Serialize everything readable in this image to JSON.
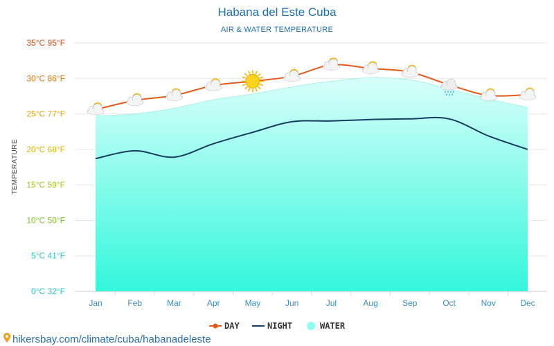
{
  "header": {
    "title": "Habana del Este Cuba",
    "subtitle": "AIR & WATER TEMPERATURE"
  },
  "footer": {
    "source": "hikersbay.com/climate/cuba/habanadeleste"
  },
  "legend": {
    "day": "DAY",
    "night": "NIGHT",
    "water": "WATER"
  },
  "chart_data": {
    "type": "line",
    "title": "Habana del Este Cuba",
    "subtitle": "AIR & WATER TEMPERATURE",
    "ylabel": "TEMPERATURE",
    "xlabel": "",
    "ylim": [
      0,
      35
    ],
    "grid": true,
    "legend_position": "bottom",
    "categories": [
      "Jan",
      "Feb",
      "Mar",
      "Apr",
      "May",
      "Jun",
      "Jul",
      "Aug",
      "Sep",
      "Oct",
      "Nov",
      "Dec"
    ],
    "y_ticks": [
      {
        "value": 0,
        "label": "0°C 32°F",
        "color": "#2ec4c4"
      },
      {
        "value": 5,
        "label": "5°C 41°F",
        "color": "#2ec4c4"
      },
      {
        "value": 10,
        "label": "10°C 50°F",
        "color": "#7cc72a"
      },
      {
        "value": 15,
        "label": "15°C 59°F",
        "color": "#a8c71c"
      },
      {
        "value": 20,
        "label": "20°C 68°F",
        "color": "#d9b800"
      },
      {
        "value": 25,
        "label": "25°C 77°F",
        "color": "#e8a200"
      },
      {
        "value": 30,
        "label": "30°C 86°F",
        "color": "#e07a10"
      },
      {
        "value": 35,
        "label": "35°C 95°F",
        "color": "#d9531e"
      }
    ],
    "series": [
      {
        "name": "DAY",
        "color": "#e35a1a",
        "values": [
          25.6,
          26.9,
          27.6,
          29.0,
          29.6,
          30.3,
          31.9,
          31.4,
          30.9,
          29.1,
          27.6,
          27.7
        ]
      },
      {
        "name": "NIGHT",
        "color": "#143d5e",
        "values": [
          18.7,
          19.8,
          18.9,
          20.8,
          22.4,
          23.9,
          24.0,
          24.2,
          24.3,
          24.3,
          21.9,
          20.0
        ]
      },
      {
        "name": "WATER",
        "color": "#44ffe6",
        "values": [
          24.7,
          25.0,
          25.8,
          27.0,
          27.8,
          28.8,
          29.6,
          30.1,
          29.8,
          28.5,
          27.1,
          25.9
        ]
      }
    ],
    "weather_icons": [
      "partly-cloudy-icon",
      "partly-cloudy-icon",
      "partly-cloudy-icon",
      "partly-cloudy-icon",
      "sun-icon",
      "partly-cloudy-icon",
      "partly-cloudy-icon",
      "partly-cloudy-icon",
      "partly-cloudy-icon",
      "rain-cloud-icon",
      "partly-cloudy-icon",
      "partly-cloudy-icon"
    ]
  }
}
